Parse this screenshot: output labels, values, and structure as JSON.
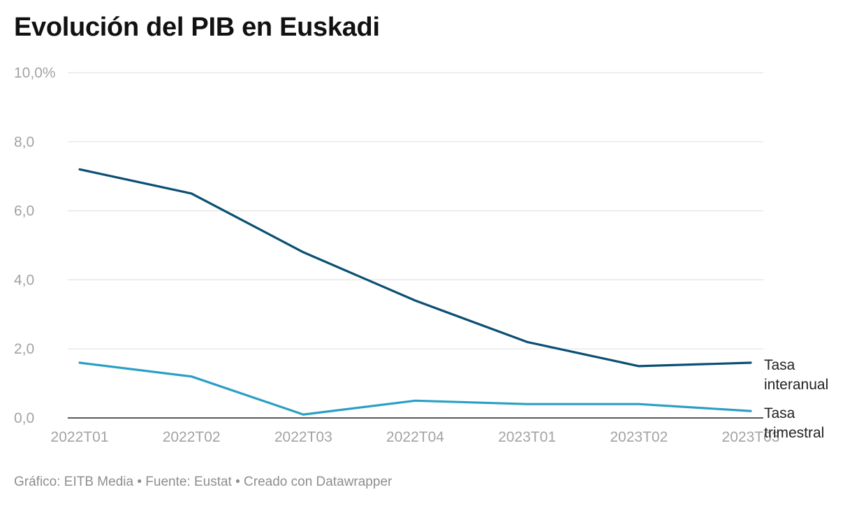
{
  "title": "Evolución del PIB en Euskadi",
  "footer": "Gráfico: EITB Media • Fuente: Eustat • Creado con Datawrapper",
  "colors": {
    "interanual": "#0b4f74",
    "trimestral": "#2b9fc4",
    "grid": "#e2e2e2",
    "baseline": "#222222",
    "tick": "#a3a3a3"
  },
  "chart_data": {
    "type": "line",
    "title": "Evolución del PIB en Euskadi",
    "xlabel": "",
    "ylabel": "",
    "ylim": [
      0,
      10
    ],
    "grid": true,
    "categories": [
      "2022T01",
      "2022T02",
      "2022T03",
      "2022T04",
      "2023T01",
      "2023T02",
      "2023T03"
    ],
    "y_ticks": [
      0,
      2,
      4,
      6,
      8,
      10
    ],
    "y_tick_labels": [
      "0,0",
      "2,0",
      "4,0",
      "6,0",
      "8,0",
      "10,0%"
    ],
    "series": [
      {
        "name": "Tasa interanual",
        "label_lines": [
          "Tasa",
          "interanual"
        ],
        "color": "#0b4f74",
        "values": [
          7.2,
          6.5,
          4.8,
          3.4,
          2.2,
          1.5,
          1.6
        ]
      },
      {
        "name": "Tasa trimestral",
        "label_lines": [
          "Tasa",
          "trimestral"
        ],
        "color": "#2b9fc4",
        "values": [
          1.6,
          1.2,
          0.1,
          0.5,
          0.4,
          0.4,
          0.2
        ]
      }
    ]
  }
}
